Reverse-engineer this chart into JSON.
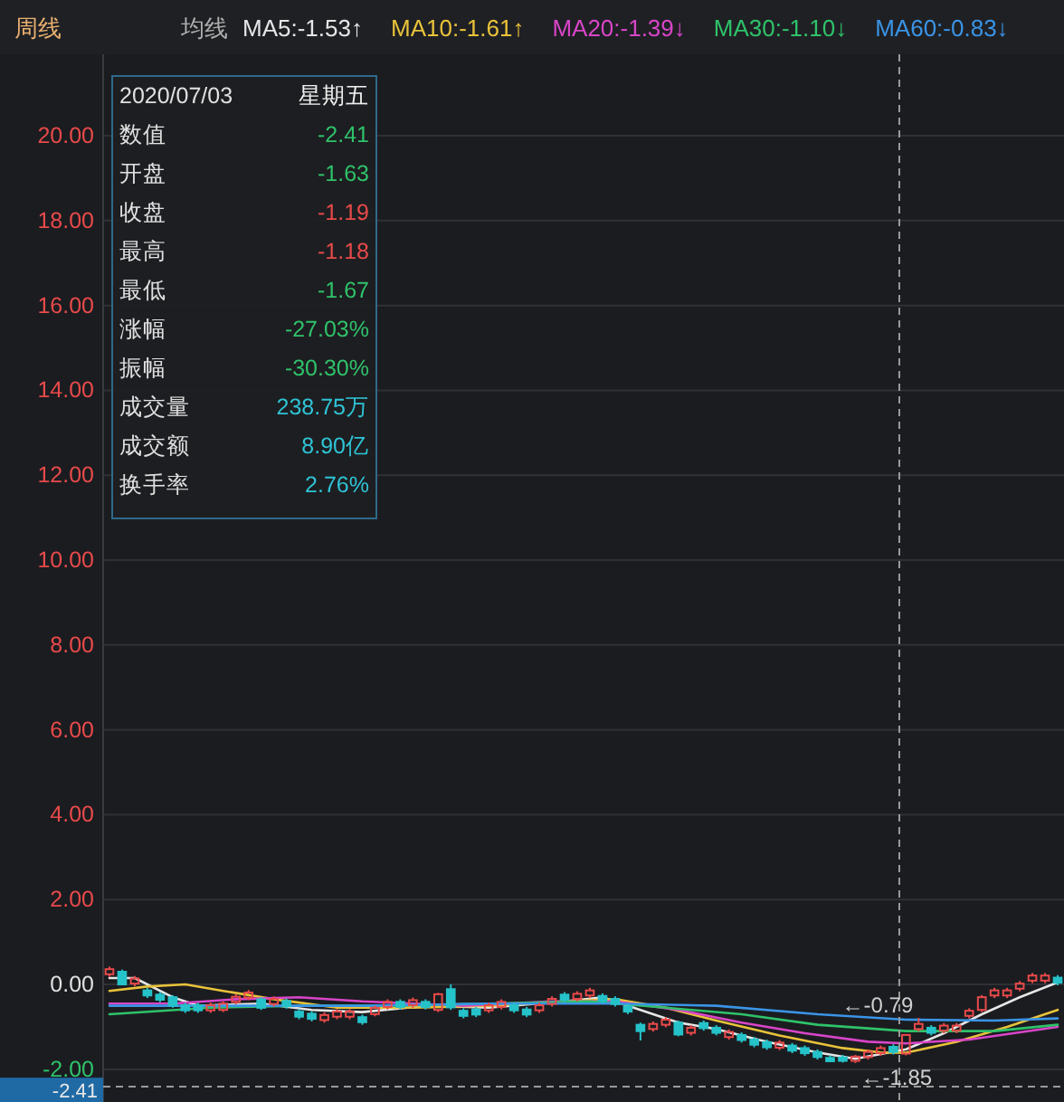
{
  "chart_data": {
    "type": "candlestick",
    "title": "周线",
    "legend_title": "均线",
    "legend": "top left",
    "grid": "y",
    "tick_labels": "y",
    "categories": [
      null,
      null,
      null,
      null,
      null,
      null,
      null,
      null,
      null,
      null,
      null,
      null,
      null,
      null,
      null,
      null,
      null,
      null,
      null,
      null,
      null,
      null,
      null,
      null,
      null,
      null,
      null,
      null,
      null,
      null,
      null,
      null,
      null,
      null,
      null,
      null,
      null,
      null,
      null,
      null,
      null,
      null,
      null,
      null,
      null,
      null,
      null,
      null,
      null,
      null,
      null,
      null,
      null,
      null,
      null,
      null,
      null,
      null,
      null,
      null,
      null,
      null,
      null,
      null,
      null,
      null,
      null,
      null,
      null,
      null,
      null,
      null,
      null,
      null,
      null,
      null
    ],
    "ohlc": [
      [
        0.24,
        0.42,
        0.18,
        0.36
      ],
      [
        0.3,
        0.35,
        -0.02,
        0.0
      ],
      [
        0.02,
        0.2,
        -0.04,
        0.14
      ],
      [
        -0.14,
        -0.08,
        -0.32,
        -0.26
      ],
      [
        -0.24,
        -0.18,
        -0.42,
        -0.36
      ],
      [
        -0.3,
        -0.25,
        -0.55,
        -0.5
      ],
      [
        -0.49,
        -0.43,
        -0.67,
        -0.61
      ],
      [
        -0.49,
        -0.43,
        -0.67,
        -0.61
      ],
      [
        -0.61,
        -0.43,
        -0.67,
        -0.49
      ],
      [
        -0.6,
        -0.4,
        -0.65,
        -0.45
      ],
      [
        -0.41,
        -0.23,
        -0.47,
        -0.29
      ],
      [
        -0.31,
        -0.13,
        -0.37,
        -0.19
      ],
      [
        -0.35,
        -0.3,
        -0.6,
        -0.55
      ],
      [
        -0.46,
        -0.28,
        -0.52,
        -0.34
      ],
      [
        -0.39,
        -0.33,
        -0.57,
        -0.51
      ],
      [
        -0.64,
        -0.58,
        -0.82,
        -0.76
      ],
      [
        -0.69,
        -0.63,
        -0.87,
        -0.81
      ],
      [
        -0.84,
        -0.66,
        -0.9,
        -0.72
      ],
      [
        -0.76,
        -0.58,
        -0.82,
        -0.64
      ],
      [
        -0.76,
        -0.58,
        -0.82,
        -0.64
      ],
      [
        -0.77,
        -0.71,
        -0.95,
        -0.89
      ],
      [
        -0.7,
        -0.5,
        -0.75,
        -0.55
      ],
      [
        -0.53,
        -0.35,
        -0.59,
        -0.41
      ],
      [
        -0.41,
        -0.35,
        -0.59,
        -0.53
      ],
      [
        -0.49,
        -0.31,
        -0.55,
        -0.37
      ],
      [
        -0.41,
        -0.35,
        -0.59,
        -0.53
      ],
      [
        -0.6,
        -0.2,
        -0.65,
        -0.23
      ],
      [
        -0.11,
        0.0,
        -0.6,
        -0.54
      ],
      [
        -0.62,
        -0.56,
        -0.8,
        -0.74
      ],
      [
        -0.59,
        -0.53,
        -0.77,
        -0.71
      ],
      [
        -0.61,
        -0.43,
        -0.67,
        -0.49
      ],
      [
        -0.53,
        -0.35,
        -0.59,
        -0.41
      ],
      [
        -0.49,
        -0.43,
        -0.67,
        -0.61
      ],
      [
        -0.59,
        -0.53,
        -0.77,
        -0.71
      ],
      [
        -0.61,
        -0.43,
        -0.67,
        -0.49
      ],
      [
        -0.46,
        -0.28,
        -0.52,
        -0.34
      ],
      [
        -0.24,
        -0.18,
        -0.42,
        -0.36
      ],
      [
        -0.34,
        -0.16,
        -0.4,
        -0.22
      ],
      [
        -0.26,
        -0.08,
        -0.32,
        -0.14
      ],
      [
        -0.27,
        -0.21,
        -0.45,
        -0.39
      ],
      [
        -0.34,
        -0.28,
        -0.52,
        -0.46
      ],
      [
        -0.52,
        -0.46,
        -0.7,
        -0.64
      ],
      [
        -0.95,
        -0.9,
        -1.32,
        -1.1
      ],
      [
        -1.05,
        -0.87,
        -1.11,
        -0.93
      ],
      [
        -0.95,
        -0.77,
        -1.01,
        -0.83
      ],
      [
        -0.9,
        -0.85,
        -1.22,
        -1.18
      ],
      [
        -1.14,
        -0.96,
        -1.2,
        -1.02
      ],
      [
        -0.91,
        -0.85,
        -1.09,
        -1.03
      ],
      [
        -1.02,
        -0.96,
        -1.2,
        -1.14
      ],
      [
        -1.24,
        -1.06,
        -1.3,
        -1.12
      ],
      [
        -1.19,
        -1.13,
        -1.37,
        -1.31
      ],
      [
        -1.3,
        -1.24,
        -1.48,
        -1.42
      ],
      [
        -1.36,
        -1.3,
        -1.54,
        -1.48
      ],
      [
        -1.49,
        -1.31,
        -1.55,
        -1.37
      ],
      [
        -1.44,
        -1.38,
        -1.62,
        -1.56
      ],
      [
        -1.5,
        -1.44,
        -1.68,
        -1.62
      ],
      [
        -1.59,
        -1.53,
        -1.77,
        -1.71
      ],
      [
        -1.73,
        -1.67,
        -1.83,
        -1.81
      ],
      [
        -1.72,
        -1.66,
        -1.84,
        -1.8
      ],
      [
        -1.8,
        -1.66,
        -1.85,
        -1.7
      ],
      [
        -1.71,
        -1.53,
        -1.77,
        -1.59
      ],
      [
        -1.62,
        -1.44,
        -1.68,
        -1.5
      ],
      [
        -1.47,
        -1.41,
        -1.65,
        -1.59
      ],
      [
        -1.63,
        -1.18,
        -1.67,
        -1.19
      ],
      [
        -1.05,
        -0.79,
        -1.11,
        -0.93
      ],
      [
        -1.02,
        -0.96,
        -1.2,
        -1.14
      ],
      [
        -1.09,
        -0.91,
        -1.15,
        -0.97
      ],
      [
        -1.09,
        -0.91,
        -1.15,
        -0.97
      ],
      [
        -0.74,
        -0.56,
        -0.8,
        -0.62
      ],
      [
        -0.6,
        -0.25,
        -0.65,
        -0.3
      ],
      [
        -0.26,
        -0.08,
        -0.32,
        -0.14
      ],
      [
        -0.26,
        -0.08,
        -0.32,
        -0.14
      ],
      [
        -0.1,
        0.08,
        -0.16,
        0.02
      ],
      [
        0.09,
        0.27,
        0.03,
        0.21
      ],
      [
        0.09,
        0.27,
        0.03,
        0.21
      ],
      [
        0.16,
        0.22,
        -0.02,
        0.04
      ]
    ],
    "series": [
      {
        "name": "MA5:-1.53↑",
        "color": "#e6e6e6",
        "type": "line",
        "values": [
          0.15,
          null,
          0.15,
          null,
          null,
          -0.3,
          null,
          -0.5,
          null,
          null,
          null,
          null,
          -0.45,
          null,
          null,
          null,
          -0.6,
          null,
          null,
          null,
          -0.65,
          null,
          null,
          null,
          null,
          -0.5,
          null,
          null,
          null,
          null,
          -0.55,
          null,
          null,
          null,
          null,
          null,
          -0.4,
          null,
          null,
          -0.3,
          null,
          null,
          -0.6,
          null,
          null,
          -0.9,
          null,
          null,
          -1.05,
          null,
          null,
          null,
          -1.35,
          null,
          null,
          null,
          -1.6,
          null,
          null,
          -1.75,
          null,
          null,
          null,
          -1.53,
          null,
          null,
          -1.15,
          null,
          null,
          -0.7,
          null,
          null,
          -0.3,
          null,
          null,
          0.05
        ]
      },
      {
        "name": "MA10:-1.61↑",
        "color": "#e8c23a",
        "type": "line",
        "values": [
          -0.15,
          null,
          null,
          -0.05,
          null,
          null,
          0.0,
          null,
          null,
          -0.15,
          null,
          null,
          null,
          -0.35,
          null,
          null,
          null,
          null,
          -0.55,
          null,
          null,
          null,
          null,
          null,
          -0.55,
          null,
          null,
          null,
          null,
          null,
          -0.5,
          null,
          null,
          null,
          null,
          null,
          -0.4,
          null,
          null,
          null,
          -0.35,
          null,
          null,
          null,
          -0.55,
          null,
          null,
          null,
          -0.85,
          null,
          null,
          null,
          null,
          -1.2,
          null,
          null,
          null,
          null,
          -1.5,
          null,
          null,
          -1.6,
          null,
          -1.61,
          null,
          null,
          null,
          -1.35,
          null,
          null,
          null,
          -1.0,
          null,
          null,
          null,
          -0.6
        ]
      },
      {
        "name": "MA20:-1.39↓",
        "color": "#d945c8",
        "type": "line",
        "values": [
          -0.45,
          null,
          null,
          null,
          null,
          -0.45,
          null,
          null,
          null,
          null,
          -0.35,
          null,
          null,
          null,
          null,
          -0.3,
          null,
          null,
          null,
          null,
          -0.4,
          null,
          null,
          null,
          null,
          null,
          null,
          null,
          -0.5,
          null,
          null,
          null,
          null,
          null,
          null,
          -0.4,
          null,
          null,
          null,
          null,
          -0.4,
          null,
          null,
          null,
          null,
          -0.6,
          null,
          null,
          null,
          null,
          -0.9,
          null,
          null,
          null,
          null,
          -1.15,
          null,
          null,
          null,
          null,
          -1.35,
          null,
          null,
          -1.39,
          null,
          null,
          null,
          null,
          -1.3,
          null,
          null,
          null,
          null,
          null,
          null,
          -1.0
        ]
      },
      {
        "name": "MA30:-1.10↓",
        "color": "#2fc26a",
        "type": "line",
        "values": [
          -0.7,
          null,
          null,
          null,
          null,
          null,
          null,
          null,
          -0.55,
          null,
          null,
          null,
          null,
          null,
          null,
          -0.5,
          null,
          null,
          null,
          null,
          null,
          null,
          -0.5,
          null,
          null,
          null,
          null,
          null,
          null,
          null,
          -0.45,
          null,
          null,
          null,
          null,
          null,
          null,
          null,
          -0.4,
          null,
          null,
          null,
          null,
          null,
          -0.55,
          null,
          null,
          null,
          null,
          null,
          -0.7,
          null,
          null,
          null,
          null,
          null,
          -0.95,
          null,
          null,
          null,
          null,
          null,
          null,
          -1.1,
          null,
          null,
          null,
          null,
          null,
          null,
          -1.1,
          null,
          null,
          null,
          null,
          -0.95
        ]
      },
      {
        "name": "MA60:-0.83↓",
        "color": "#3a94e6",
        "type": "line",
        "values": [
          -0.5,
          null,
          null,
          null,
          null,
          null,
          null,
          null,
          null,
          null,
          -0.5,
          null,
          null,
          null,
          null,
          null,
          null,
          null,
          null,
          null,
          -0.5,
          null,
          null,
          null,
          null,
          null,
          null,
          null,
          null,
          null,
          -0.45,
          null,
          null,
          null,
          null,
          null,
          null,
          null,
          null,
          null,
          -0.45,
          null,
          null,
          null,
          null,
          null,
          null,
          null,
          -0.5,
          null,
          null,
          null,
          null,
          null,
          null,
          null,
          -0.7,
          null,
          null,
          null,
          null,
          null,
          null,
          -0.83,
          null,
          null,
          null,
          null,
          null,
          null,
          -0.85,
          null,
          null,
          null,
          null,
          -0.8
        ]
      }
    ],
    "ylim": [
      -2.77,
      21.92
    ],
    "yticks": [
      {
        "value": -2,
        "label": "-2.00"
      },
      {
        "value": 0,
        "label": "0.00"
      },
      {
        "value": 2,
        "label": "2.00"
      },
      {
        "value": 4,
        "label": "4.00"
      },
      {
        "value": 6,
        "label": "6.00"
      },
      {
        "value": 8,
        "label": "8.00"
      },
      {
        "value": 10,
        "label": "10.00"
      },
      {
        "value": 12,
        "label": "12.00"
      },
      {
        "value": 14,
        "label": "14.00"
      },
      {
        "value": 16,
        "label": "16.00"
      },
      {
        "value": 18,
        "label": "18.00"
      },
      {
        "value": 20,
        "label": "20.00"
      }
    ],
    "ref_lines": [
      {
        "axis": "y",
        "value": -2.41,
        "label": "-2.41"
      }
    ],
    "annotations": [
      {
        "text": "←-1.85",
        "y": -1.85
      },
      {
        "text": "←-0.79",
        "y": -0.79
      },
      "2020/07/03",
      "星期五",
      "数值",
      "-2.41",
      "开盘",
      "-1.63",
      "收盘",
      "-1.19",
      "最高",
      "-1.18",
      "最低",
      "-1.67",
      "涨幅",
      "-27.03%",
      "振幅",
      "-30.30%",
      "成交量",
      "238.75万",
      "成交额",
      "8.90亿",
      "换手率",
      "2.76%"
    ]
  }
}
